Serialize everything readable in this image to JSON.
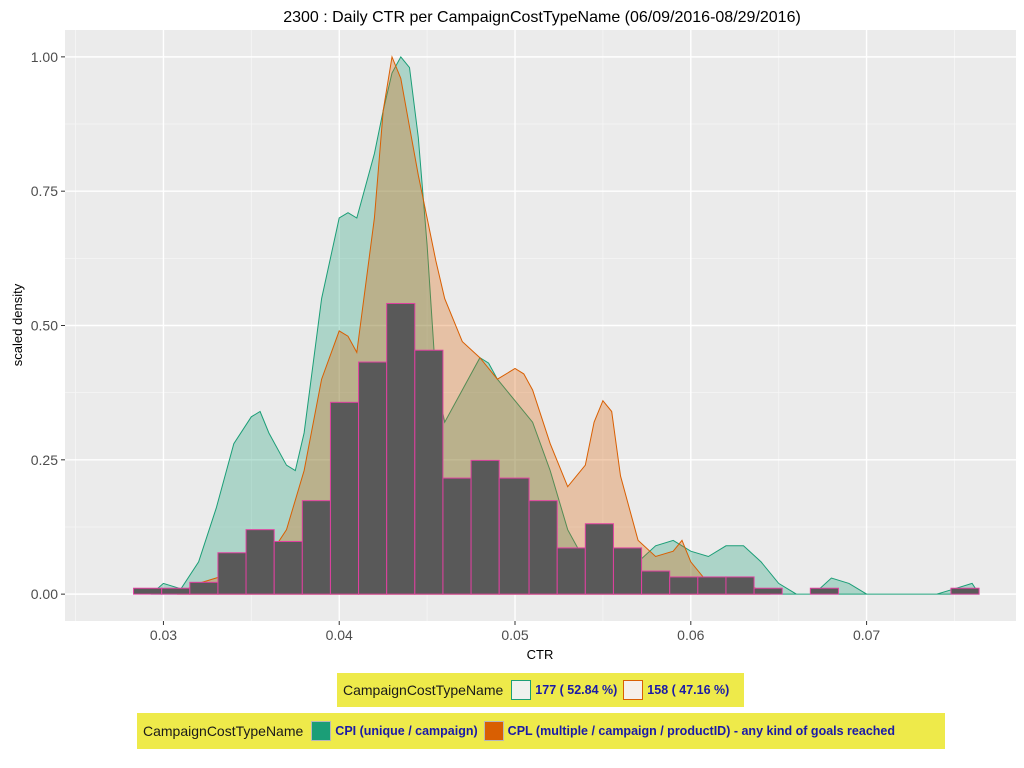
{
  "chart_data": {
    "type": "histogram+density",
    "title": "2300 : Daily CTR per CampaignCostTypeName (06/09/2016-08/29/2016)",
    "xlabel": "CTR",
    "ylabel": "scaled density",
    "xlim": [
      0.0244,
      0.0785
    ],
    "ylim": [
      -0.05,
      1.05
    ],
    "x_ticks": [
      0.03,
      0.04,
      0.05,
      0.06,
      0.07
    ],
    "x_tick_labels": [
      "0.03",
      "0.04",
      "0.05",
      "0.06",
      "0.07"
    ],
    "y_ticks": [
      0,
      0.25,
      0.5,
      0.75,
      1.0
    ],
    "y_tick_labels": [
      "0.00",
      "0.25",
      "0.50",
      "0.75",
      "1.00"
    ],
    "grid": true,
    "histogram": {
      "bin_edges": [
        0.0283,
        0.0299,
        0.0315,
        0.0331,
        0.0347,
        0.0363,
        0.0379,
        0.0395,
        0.0411,
        0.0427,
        0.0443,
        0.0459,
        0.0475,
        0.0491,
        0.0508,
        0.0524,
        0.054,
        0.0556,
        0.0572,
        0.0588,
        0.0604,
        0.062,
        0.0636,
        0.0652,
        0.0668,
        0.0684,
        0.07,
        0.0716,
        0.0732,
        0.0748,
        0.0764
      ],
      "values": [
        0.011,
        0.011,
        0.022,
        0.077,
        0.12,
        0.098,
        0.174,
        0.357,
        0.432,
        0.541,
        0.454,
        0.216,
        0.249,
        0.216,
        0.174,
        0.086,
        0.131,
        0.086,
        0.043,
        0.032,
        0.032,
        0.032,
        0.011,
        0,
        0.011,
        0,
        0,
        0,
        0,
        0.011
      ],
      "fill": "#595959",
      "stroke": "#e040a0"
    },
    "series": [
      {
        "name": "CPI (unique / campaign)",
        "count_label": "177 ( 52.84 %)",
        "color": "#1b9e77",
        "x": [
          0.0293,
          0.03,
          0.031,
          0.032,
          0.033,
          0.034,
          0.035,
          0.0355,
          0.036,
          0.037,
          0.0375,
          0.038,
          0.039,
          0.04,
          0.0405,
          0.041,
          0.042,
          0.0425,
          0.043,
          0.0435,
          0.044,
          0.0445,
          0.045,
          0.0455,
          0.046,
          0.047,
          0.048,
          0.0485,
          0.049,
          0.05,
          0.051,
          0.052,
          0.053,
          0.054,
          0.055,
          0.056,
          0.057,
          0.058,
          0.059,
          0.06,
          0.061,
          0.062,
          0.063,
          0.064,
          0.065,
          0.066,
          0.067,
          0.068,
          0.069,
          0.07,
          0.072,
          0.074,
          0.075,
          0.076,
          0.0764
        ],
        "y": [
          0.0,
          0.02,
          0.01,
          0.06,
          0.16,
          0.28,
          0.33,
          0.34,
          0.3,
          0.24,
          0.23,
          0.3,
          0.55,
          0.7,
          0.71,
          0.7,
          0.82,
          0.9,
          0.97,
          1.0,
          0.98,
          0.85,
          0.65,
          0.4,
          0.32,
          0.38,
          0.44,
          0.43,
          0.4,
          0.36,
          0.32,
          0.23,
          0.12,
          0.06,
          0.04,
          0.03,
          0.06,
          0.09,
          0.1,
          0.08,
          0.07,
          0.09,
          0.09,
          0.06,
          0.02,
          0.0,
          0.0,
          0.03,
          0.02,
          0.0,
          0.0,
          0.0,
          0.01,
          0.02,
          0.0
        ]
      },
      {
        "name": "CPL (multiple / campaign / productID) - any kind of goals reached",
        "count_label": "158 ( 47.16 %)",
        "color": "#d95f02",
        "x": [
          0.0308,
          0.032,
          0.034,
          0.035,
          0.036,
          0.037,
          0.038,
          0.039,
          0.04,
          0.0405,
          0.041,
          0.042,
          0.0425,
          0.043,
          0.0435,
          0.044,
          0.0445,
          0.045,
          0.0455,
          0.046,
          0.047,
          0.048,
          0.049,
          0.05,
          0.0505,
          0.051,
          0.052,
          0.053,
          0.054,
          0.0545,
          0.055,
          0.0555,
          0.056,
          0.057,
          0.058,
          0.059,
          0.0595,
          0.06,
          0.061,
          0.062,
          0.063,
          0.0645
        ],
        "y": [
          0.0,
          0.02,
          0.04,
          0.05,
          0.07,
          0.12,
          0.23,
          0.4,
          0.49,
          0.48,
          0.45,
          0.7,
          0.9,
          1.0,
          0.96,
          0.87,
          0.78,
          0.7,
          0.62,
          0.55,
          0.47,
          0.44,
          0.4,
          0.42,
          0.41,
          0.38,
          0.28,
          0.2,
          0.24,
          0.32,
          0.36,
          0.34,
          0.22,
          0.1,
          0.07,
          0.08,
          0.1,
          0.06,
          0.02,
          0.03,
          0.02,
          0.0
        ]
      }
    ]
  },
  "legend_count": {
    "title": "CampaignCostTypeName",
    "items": [
      {
        "label": "177 ( 52.84 %)",
        "fill": "#eef1ee",
        "border": "#1b9e77"
      },
      {
        "label": "158 ( 47.16 %)",
        "fill": "#f5efe9",
        "border": "#d95f02"
      }
    ]
  },
  "legend_type": {
    "title": "CampaignCostTypeName",
    "items": [
      {
        "label": "CPI (unique / campaign)",
        "color": "#1b9e77"
      },
      {
        "label": "CPL (multiple / campaign / productID) - any kind of goals reached",
        "color": "#d95f02"
      }
    ]
  }
}
